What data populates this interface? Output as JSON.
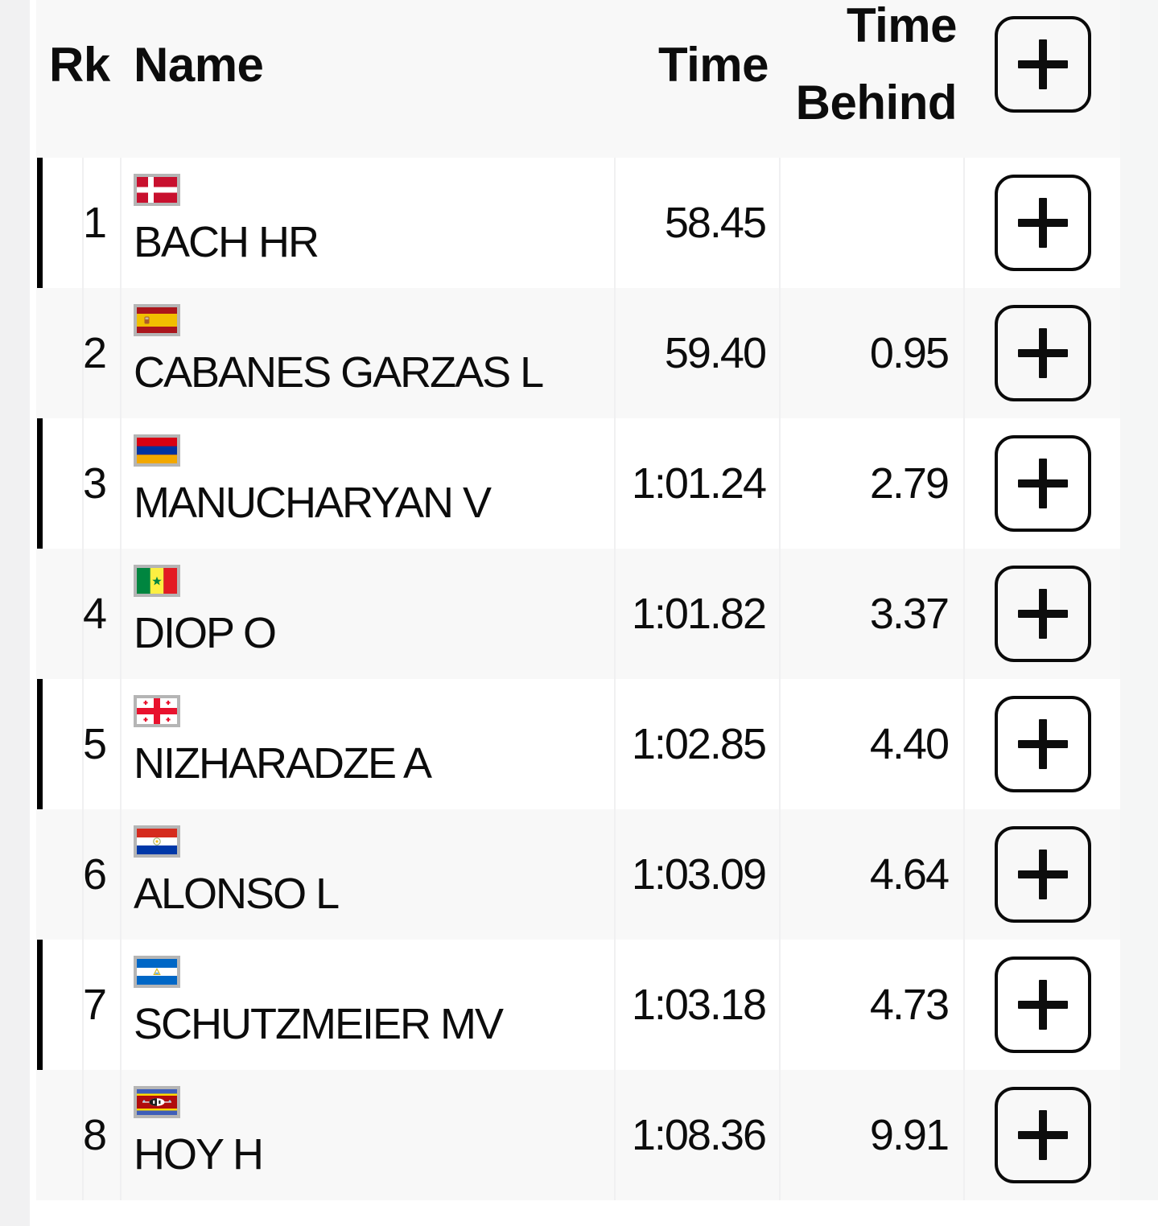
{
  "table": {
    "headers": {
      "rank": "Rk",
      "name": "Name",
      "time": "Time",
      "time_behind": "Time Behind"
    },
    "rows": [
      {
        "rank": "1",
        "name": "BACH HR",
        "country": "denmark",
        "time": "58.45",
        "behind": "",
        "marked": true
      },
      {
        "rank": "2",
        "name": "CABANES GARZAS L",
        "country": "spain",
        "time": "59.40",
        "behind": "0.95",
        "marked": false
      },
      {
        "rank": "3",
        "name": "MANUCHARYAN V",
        "country": "armenia",
        "time": "1:01.24",
        "behind": "2.79",
        "marked": true
      },
      {
        "rank": "4",
        "name": "DIOP O",
        "country": "senegal",
        "time": "1:01.82",
        "behind": "3.37",
        "marked": false
      },
      {
        "rank": "5",
        "name": "NIZHARADZE A",
        "country": "georgia",
        "time": "1:02.85",
        "behind": "4.40",
        "marked": true
      },
      {
        "rank": "6",
        "name": "ALONSO L",
        "country": "paraguay",
        "time": "1:03.09",
        "behind": "4.64",
        "marked": false
      },
      {
        "rank": "7",
        "name": "SCHUTZMEIER MV",
        "country": "nicaragua",
        "time": "1:03.18",
        "behind": "4.73",
        "marked": true
      },
      {
        "rank": "8",
        "name": "HOY H",
        "country": "eswatini",
        "time": "1:08.36",
        "behind": "9.91",
        "marked": false
      }
    ]
  },
  "icons": {
    "header_action": "plus-icon",
    "row_action": "plus-icon"
  },
  "colors": {
    "page_bg": "#f1f1f2",
    "row_alt_bg": "#f8f8f8",
    "gutter_right_bg": "#f5f6f6",
    "marker_bar": "#000000",
    "flag_border": "#b5b5b5",
    "text": "#0c0c0c"
  }
}
